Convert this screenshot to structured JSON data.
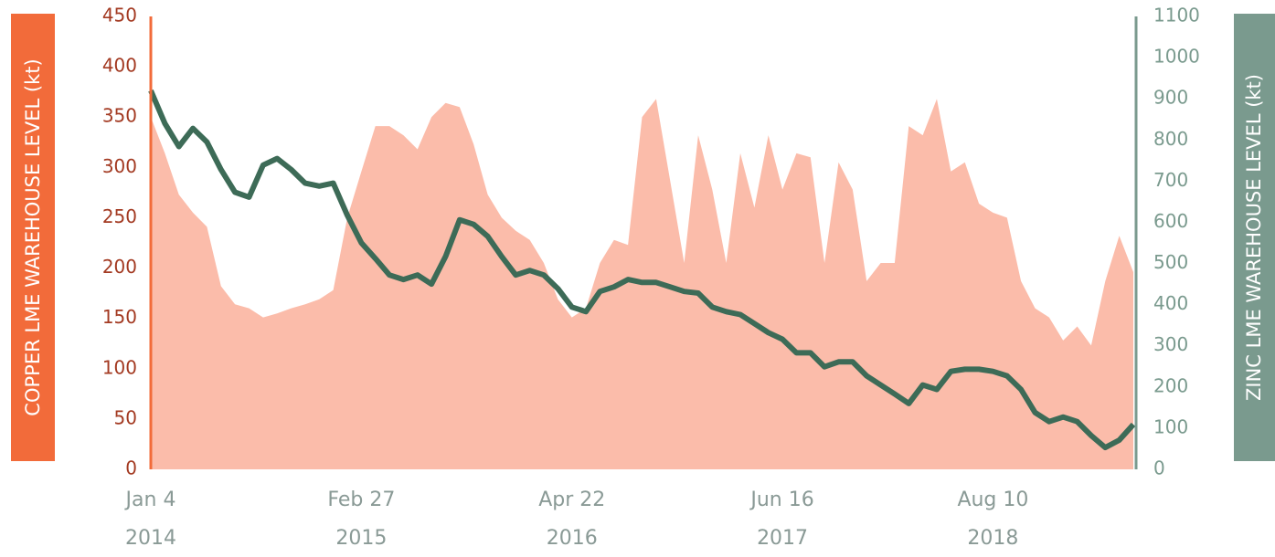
{
  "chart_data": {
    "type": "area-line",
    "categories": [
      "Jan 4\n2014",
      null,
      null,
      null,
      null,
      null,
      null,
      null,
      null,
      null,
      null,
      null,
      null,
      null,
      null,
      "Feb 27\n2015",
      null,
      null,
      null,
      null,
      null,
      null,
      null,
      null,
      null,
      null,
      null,
      null,
      null,
      null,
      "Apr 22\n2016",
      null,
      null,
      null,
      null,
      null,
      null,
      null,
      null,
      null,
      null,
      null,
      null,
      null,
      null,
      "Jun 16\n2017",
      null,
      null,
      null,
      null,
      null,
      null,
      null,
      null,
      null,
      null,
      null,
      null,
      null,
      null,
      "Aug 10\n2018",
      null,
      null,
      null,
      null,
      null,
      null,
      null,
      null,
      null,
      null
    ],
    "series": [
      {
        "name": "COPPER LME WAREHOUSE LEVEL (kt)",
        "color": "#fbbcaa",
        "axis": "y",
        "values": [
          350,
          314,
          273,
          255,
          241,
          182,
          164,
          160,
          151,
          155,
          160,
          164,
          169,
          178,
          250,
          296,
          341,
          341,
          332,
          318,
          350,
          364,
          360,
          323,
          273,
          250,
          237,
          228,
          205,
          169,
          151,
          160,
          205,
          228,
          223,
          350,
          368,
          287,
          205,
          332,
          278,
          205,
          314,
          260,
          332,
          278,
          314,
          310,
          205,
          305,
          278,
          187,
          205,
          205,
          341,
          332,
          368,
          296,
          305,
          264,
          255,
          250,
          187,
          160,
          151,
          128,
          142,
          123,
          187,
          232,
          196
        ]
      },
      {
        "name": "ZINC LME WAREHOUSE LEVEL (kt)",
        "color": "#3d6b57",
        "axis": "y2",
        "values": [
          920,
          840,
          784,
          828,
          795,
          728,
          673,
          661,
          739,
          755,
          728,
          695,
          688,
          695,
          617,
          550,
          512,
          472,
          461,
          472,
          450,
          517,
          606,
          595,
          566,
          517,
          472,
          483,
          472,
          439,
          394,
          383,
          432,
          443,
          461,
          454,
          454,
          443,
          432,
          428,
          394,
          383,
          376,
          354,
          332,
          316,
          283,
          283,
          249,
          261,
          261,
          227,
          205,
          183,
          160,
          205,
          194,
          238,
          243,
          243,
          238,
          227,
          194,
          138,
          116,
          127,
          116,
          82,
          53,
          71,
          109
        ]
      }
    ],
    "ylim": [
      0,
      450
    ],
    "yticks": [
      0,
      50,
      100,
      150,
      200,
      250,
      300,
      350,
      400,
      450
    ],
    "y2lim": [
      0,
      1100
    ],
    "y2ticks": [
      0,
      100,
      200,
      300,
      400,
      500,
      600,
      700,
      800,
      900,
      1000,
      1100
    ]
  }
}
